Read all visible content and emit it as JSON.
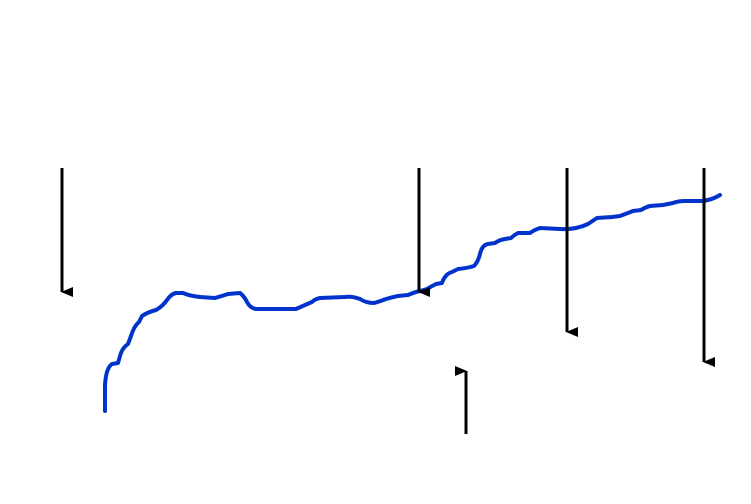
{
  "diagram": {
    "curve_color": "#0033cc",
    "arrow_color": "#000000",
    "arrows": [
      {
        "direction": "down"
      },
      {
        "direction": "down"
      },
      {
        "direction": "down"
      },
      {
        "direction": "down"
      },
      {
        "direction": "up"
      }
    ]
  }
}
